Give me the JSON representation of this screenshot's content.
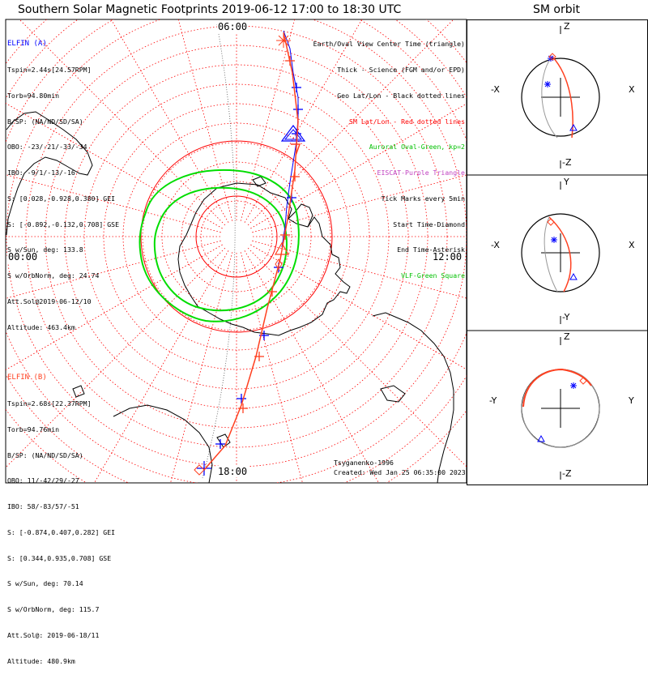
{
  "title": "Southern Solar Magnetic Footprints 2019-06-12 17:00 to 18:30 UTC",
  "orbit_title": "SM orbit",
  "clock_labels": {
    "top": "06:00",
    "left": "00:00",
    "right": "12:00",
    "bottom": "18:00"
  },
  "elfin_a": {
    "name": "ELFIN (A)",
    "lines": [
      "Tspin=2.44s[24.57RPM]",
      "Torb=94.80min",
      "B/SP: (NA/ND/SD/SA)",
      "OBO: -23/-21/-33/-34",
      "IBO: -9/1/-13/-16",
      "S: [0.028,-0.928,0.380] GEI",
      "S: [-0.892,-0.132,0.708] GSE",
      "S w/Sun, deg: 133.8",
      "S w/OrbNorm, deg: 24.74",
      "Att.Sol@2019-06-12/10",
      "Altitude: 463.4km"
    ]
  },
  "elfin_b": {
    "name": "ELFIN (B)",
    "lines": [
      "Tspin=2.68s[22.37RPM]",
      "Torb=94.76min",
      "B/SP: (NA/ND/SD/SA)",
      "OBO: 11/-42/29/-27",
      "IBO: 58/-83/57/-51",
      "S: [-0.874,0.407,0.282] GEI",
      "S: [0.344,0.935,0.708] GSE",
      "S w/Sun, deg: 70.14",
      "S w/OrbNorm, deg: 115.7",
      "Att.Sol@: 2019-06-18/11",
      "Altitude: 480.9km"
    ]
  },
  "legend": [
    {
      "text": "Earth/Oval View Center Time (triangle)",
      "color": "#000000"
    },
    {
      "text": "Thick - Science (FGM and/or EPD)",
      "color": "#000000"
    },
    {
      "text": "Geo Lat/Lon - Black dotted lines",
      "color": "#000000"
    },
    {
      "text": "SM Lat/Lon - Red dotted lines",
      "color": "#ff0000"
    },
    {
      "text": "Auroral Oval-Green, kp=2",
      "color": "#00c000"
    },
    {
      "text": "EISCAT-Purple Triangle",
      "color": "#c040c0"
    },
    {
      "text": "Tick Marks every 5min",
      "color": "#000000"
    },
    {
      "text": "Start Time-Diamond",
      "color": "#000000"
    },
    {
      "text": "End Time-Asterisk",
      "color": "#000000"
    },
    {
      "text": "VLF-Green Square",
      "color": "#00c000"
    }
  ],
  "footer": {
    "model": "Tsyganenko-1996",
    "created": "Created: Wed Jan 25 06:35:00 2023"
  },
  "colors": {
    "elfin_a": "#0000ff",
    "elfin_b": "#ff4020",
    "oval": "#00dd00",
    "sm_grid": "#ff0000",
    "frame": "#000000"
  },
  "chart_data": [
    {
      "type": "polar-map",
      "title": "Southern Solar Magnetic Footprints 2019-06-12 17:00 to 18:30 UTC",
      "clock_labels": [
        "06:00",
        "00:00",
        "12:00",
        "18:00"
      ],
      "series": [
        {
          "name": "ELFIN (A)",
          "color": "#0000ff"
        },
        {
          "name": "ELFIN (B)",
          "color": "#ff4020"
        }
      ]
    },
    {
      "type": "orbit-panels",
      "title": "SM orbit",
      "panels": [
        {
          "top": "Z",
          "bottom": "-Z",
          "left": "-X",
          "right": "X"
        },
        {
          "top": "Y",
          "bottom": "-Y",
          "left": "-X",
          "right": "X"
        },
        {
          "top": "Z",
          "bottom": "-Z",
          "left": "-Y",
          "right": "Y"
        }
      ]
    }
  ]
}
